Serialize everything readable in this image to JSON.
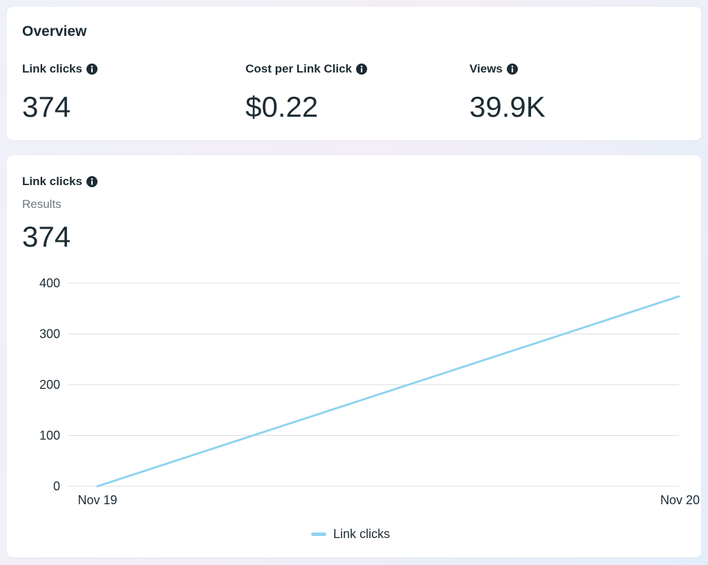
{
  "overview": {
    "title": "Overview",
    "metrics": [
      {
        "label": "Link clicks",
        "value": "374"
      },
      {
        "label": "Cost per Link Click",
        "value": "$0.22"
      },
      {
        "label": "Views",
        "value": "39.9K"
      }
    ]
  },
  "chart_card": {
    "title": "Link clicks",
    "subtitle": "Results",
    "value": "374"
  },
  "colors": {
    "line": "#8fd3f0",
    "text": "#1c2b33",
    "muted": "#6b7780"
  },
  "icons": {
    "info": "info-icon"
  },
  "chart_data": {
    "type": "line",
    "x": [
      "Nov 19",
      "Nov 20"
    ],
    "series": [
      {
        "name": "Link clicks",
        "values": [
          0,
          374
        ]
      }
    ],
    "yticks": [
      0,
      100,
      200,
      300,
      400
    ],
    "ylim": [
      0,
      400
    ],
    "grid": true,
    "legend": "bottom-center"
  }
}
